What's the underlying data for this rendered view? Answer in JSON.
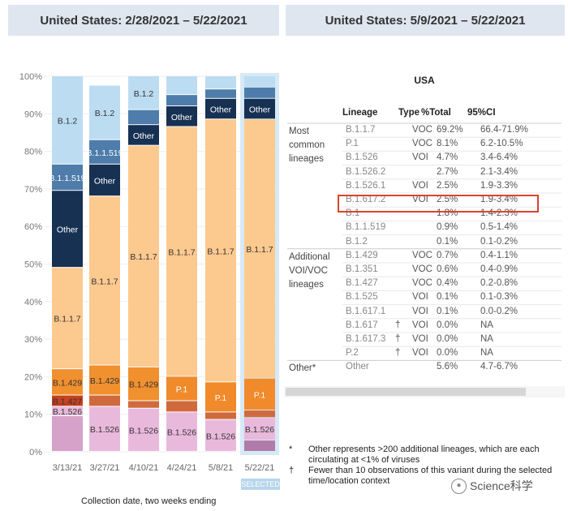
{
  "left_header": "United States: 2/28/2021 – 5/22/2021",
  "right_header": "United States: 5/9/2021 – 5/22/2021",
  "chart_data": {
    "type": "bar",
    "stacked": true,
    "title": "United States: 2/28/2021 – 5/22/2021",
    "xlabel": "Collection date, two weeks ending",
    "ylabel": "",
    "ylim": [
      0,
      100
    ],
    "y_ticks": [
      "0%",
      "10%",
      "20%",
      "30%",
      "40%",
      "50%",
      "60%",
      "70%",
      "80%",
      "90%",
      "100%"
    ],
    "categories": [
      "3/13/21",
      "3/27/21",
      "4/10/21",
      "4/24/21",
      "5/8/21",
      "5/22/21"
    ],
    "selected_category": "5/22/21",
    "selected_label": "SELECTED",
    "colors": {
      "B.1.526": "#e9b9dc",
      "B.1.427": "#c5421f",
      "B.1.429": "#f0902e",
      "P.1": "#f08a2a",
      "B.1.1.7": "#fcc98f",
      "Other": "#173153",
      "B.1.1.519": "#4e7dab",
      "B.1.2": "#bcdcf1",
      "minor": "#8fb4d8",
      "minor_pink": "#d7a2c9",
      "minor_purple": "#b07aa9",
      "minor_red": "#d06a3c"
    },
    "bars": [
      {
        "date": "3/13/21",
        "segments": [
          {
            "lineage": "B.1.526",
            "value": 9.5,
            "color": "minor_pink",
            "label": ""
          },
          {
            "lineage": "B.1.526",
            "value": 2.5,
            "color": "B.1.526",
            "label": "B.1.526"
          },
          {
            "lineage": "B.1.427",
            "value": 3.0,
            "color": "B.1.427",
            "label": "B.1.427"
          },
          {
            "lineage": "B.1.429",
            "value": 7.0,
            "color": "B.1.429",
            "label": "B.1.429"
          },
          {
            "lineage": "B.1.1.7",
            "value": 27.0,
            "color": "B.1.1.7",
            "label": "B.1.1.7"
          },
          {
            "lineage": "Other",
            "value": 20.5,
            "color": "Other",
            "label": "Other"
          },
          {
            "lineage": "B.1.1.519",
            "value": 7.0,
            "color": "B.1.1.519",
            "label": "B.1.1.519"
          },
          {
            "lineage": "B.1.2",
            "value": 23.5,
            "color": "B.1.2",
            "label": "B.1.2"
          }
        ]
      },
      {
        "date": "3/27/21",
        "segments": [
          {
            "lineage": "B.1.526",
            "value": 12.0,
            "color": "B.1.526",
            "label": "B.1.526"
          },
          {
            "lineage": "B.1.427",
            "value": 3.0,
            "color": "minor_red",
            "label": ""
          },
          {
            "lineage": "B.1.429",
            "value": 8.0,
            "color": "B.1.429",
            "label": "B.1.429"
          },
          {
            "lineage": "B.1.1.7",
            "value": 45.0,
            "color": "B.1.1.7",
            "label": "B.1.1.7"
          },
          {
            "lineage": "Other",
            "value": 8.5,
            "color": "Other",
            "label": "Other"
          },
          {
            "lineage": "B.1.1.519",
            "value": 6.5,
            "color": "B.1.1.519",
            "label": "B.1.1.519"
          },
          {
            "lineage": "B.1.2",
            "value": 14.5,
            "color": "B.1.2",
            "label": "B.1.2"
          }
        ]
      },
      {
        "date": "4/10/21",
        "segments": [
          {
            "lineage": "B.1.526",
            "value": 11.5,
            "color": "B.1.526",
            "label": "B.1.526"
          },
          {
            "lineage": "B.1.427",
            "value": 2.0,
            "color": "minor_red",
            "label": ""
          },
          {
            "lineage": "B.1.429",
            "value": 9.0,
            "color": "B.1.429",
            "label": "B.1.429"
          },
          {
            "lineage": "B.1.1.7",
            "value": 59.0,
            "color": "B.1.1.7",
            "label": "B.1.1.7"
          },
          {
            "lineage": "Other",
            "value": 5.5,
            "color": "Other",
            "label": "Other"
          },
          {
            "lineage": "B.1.1.519",
            "value": 4.0,
            "color": "B.1.1.519",
            "label": ""
          },
          {
            "lineage": "B.1.2",
            "value": 9.0,
            "color": "B.1.2",
            "label": "B.1.2"
          }
        ]
      },
      {
        "date": "4/24/21",
        "segments": [
          {
            "lineage": "B.1.526",
            "value": 10.5,
            "color": "B.1.526",
            "label": "B.1.526"
          },
          {
            "lineage": "B.1.429",
            "value": 3.0,
            "color": "minor_red",
            "label": ""
          },
          {
            "lineage": "P.1",
            "value": 6.5,
            "color": "P.1",
            "label": "P.1"
          },
          {
            "lineage": "B.1.1.7",
            "value": 66.5,
            "color": "B.1.1.7",
            "label": "B.1.1.7"
          },
          {
            "lineage": "Other",
            "value": 5.5,
            "color": "Other",
            "label": "Other"
          },
          {
            "lineage": "B.1.1.519",
            "value": 3.0,
            "color": "B.1.1.519",
            "label": ""
          },
          {
            "lineage": "B.1.2",
            "value": 5.0,
            "color": "B.1.2",
            "label": ""
          }
        ]
      },
      {
        "date": "5/8/21",
        "segments": [
          {
            "lineage": "B.1.526",
            "value": 8.5,
            "color": "B.1.526",
            "label": "B.1.526"
          },
          {
            "lineage": "B.1.429",
            "value": 2.0,
            "color": "minor_red",
            "label": ""
          },
          {
            "lineage": "P.1",
            "value": 8.0,
            "color": "P.1",
            "label": "P.1"
          },
          {
            "lineage": "B.1.1.7",
            "value": 70.0,
            "color": "B.1.1.7",
            "label": "B.1.1.7"
          },
          {
            "lineage": "Other",
            "value": 5.5,
            "color": "Other",
            "label": "Other"
          },
          {
            "lineage": "B.1.1.519",
            "value": 2.5,
            "color": "B.1.1.519",
            "label": ""
          },
          {
            "lineage": "B.1.2",
            "value": 3.5,
            "color": "B.1.2",
            "label": ""
          }
        ]
      },
      {
        "date": "5/22/21",
        "segments": [
          {
            "lineage": "B.1.526",
            "value": 3.0,
            "color": "minor_purple",
            "label": ""
          },
          {
            "lineage": "B.1.526",
            "value": 6.0,
            "color": "B.1.526",
            "label": "B.1.526"
          },
          {
            "lineage": "B.1.429",
            "value": 2.0,
            "color": "minor_red",
            "label": ""
          },
          {
            "lineage": "P.1",
            "value": 8.5,
            "color": "P.1",
            "label": "P.1"
          },
          {
            "lineage": "B.1.1.7",
            "value": 69.0,
            "color": "B.1.1.7",
            "label": "B.1.1.7"
          },
          {
            "lineage": "Other",
            "value": 5.5,
            "color": "Other",
            "label": "Other"
          },
          {
            "lineage": "B.1.1.519",
            "value": 3.0,
            "color": "B.1.1.519",
            "label": ""
          },
          {
            "lineage": "B.1.2",
            "value": 3.0,
            "color": "B.1.2",
            "label": ""
          }
        ]
      }
    ]
  },
  "table": {
    "title": "USA",
    "columns": [
      "Lineage",
      "Type",
      "%Total",
      "95%CI"
    ],
    "groups": [
      {
        "label": "Most common lineages",
        "rows": [
          {
            "lineage": "B.1.1.7",
            "mark": "",
            "type": "VOC",
            "pct": "69.2%",
            "ci": "66.4-71.9%"
          },
          {
            "lineage": "P.1",
            "mark": "",
            "type": "VOC",
            "pct": "8.1%",
            "ci": "6.2-10.5%"
          },
          {
            "lineage": "B.1.526",
            "mark": "",
            "type": "VOI",
            "pct": "4.7%",
            "ci": "3.4-6.4%"
          },
          {
            "lineage": "B.1.526.2",
            "mark": "",
            "type": "",
            "pct": "2.7%",
            "ci": "2.1-3.4%"
          },
          {
            "lineage": "B.1.526.1",
            "mark": "",
            "type": "VOI",
            "pct": "2.5%",
            "ci": "1.9-3.3%"
          },
          {
            "lineage": "B.1.617.2",
            "mark": "",
            "type": "VOI",
            "pct": "2.5%",
            "ci": "1.9-3.4%"
          },
          {
            "lineage": "B.1",
            "mark": "",
            "type": "",
            "pct": "1.8%",
            "ci": "1.4-2.3%"
          },
          {
            "lineage": "B.1.1.519",
            "mark": "",
            "type": "",
            "pct": "0.9%",
            "ci": "0.5-1.4%"
          },
          {
            "lineage": "B.1.2",
            "mark": "",
            "type": "",
            "pct": "0.1%",
            "ci": "0.1-0.2%"
          }
        ]
      },
      {
        "label": "Additional VOI/VOC lineages",
        "rows": [
          {
            "lineage": "B.1.429",
            "mark": "",
            "type": "VOC",
            "pct": "0.7%",
            "ci": "0.4-1.1%"
          },
          {
            "lineage": "B.1.351",
            "mark": "",
            "type": "VOC",
            "pct": "0.6%",
            "ci": "0.4-0.9%"
          },
          {
            "lineage": "B.1.427",
            "mark": "",
            "type": "VOC",
            "pct": "0.4%",
            "ci": "0.2-0.8%"
          },
          {
            "lineage": "B.1.525",
            "mark": "",
            "type": "VOI",
            "pct": "0.1%",
            "ci": "0.1-0.3%"
          },
          {
            "lineage": "B.1.617.1",
            "mark": "",
            "type": "VOI",
            "pct": "0.1%",
            "ci": "0.0-0.2%"
          },
          {
            "lineage": "B.1.617",
            "mark": "†",
            "type": "VOI",
            "pct": "0.0%",
            "ci": "NA"
          },
          {
            "lineage": "B.1.617.3",
            "mark": "†",
            "type": "VOI",
            "pct": "0.0%",
            "ci": "NA"
          },
          {
            "lineage": "P.2",
            "mark": "†",
            "type": "VOI",
            "pct": "0.0%",
            "ci": "NA"
          }
        ]
      },
      {
        "label": "Other*",
        "rows": [
          {
            "lineage": "Other",
            "mark": "",
            "type": "",
            "pct": "5.6%",
            "ci": "4.7-6.7%"
          }
        ]
      }
    ],
    "highlighted_lineage": "B.1.617.2",
    "highlight_color": "#d8452d"
  },
  "footnotes": [
    {
      "symbol": "*",
      "text": "Other represents >200 additional lineages, which are each circulating at <1% of viruses"
    },
    {
      "symbol": "†",
      "text": "Fewer than 10 observations of this variant during the selected time/location context"
    }
  ],
  "watermark": {
    "text": "Science科学",
    "icon": "chat-bubble-icon"
  }
}
